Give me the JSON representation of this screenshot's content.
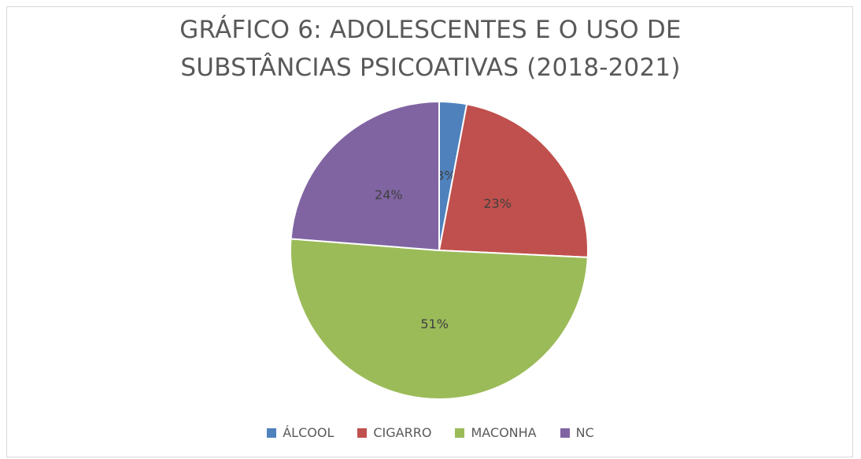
{
  "chart_data": {
    "type": "pie",
    "title": "GRÁFICO 6: ADOLESCENTES E O USO DE SUBSTÂNCIAS PSICOATIVAS (2018-2021)",
    "categories": [
      "ÁLCOOL",
      "CIGARRO",
      "MACONHA",
      "NC"
    ],
    "values": [
      3,
      23,
      51,
      24
    ],
    "value_labels": [
      "3%",
      "23%",
      "51%",
      "24%"
    ],
    "colors": [
      "#4f81bd",
      "#c0504d",
      "#9bbb59",
      "#8064a2"
    ],
    "legend": "bottom"
  }
}
